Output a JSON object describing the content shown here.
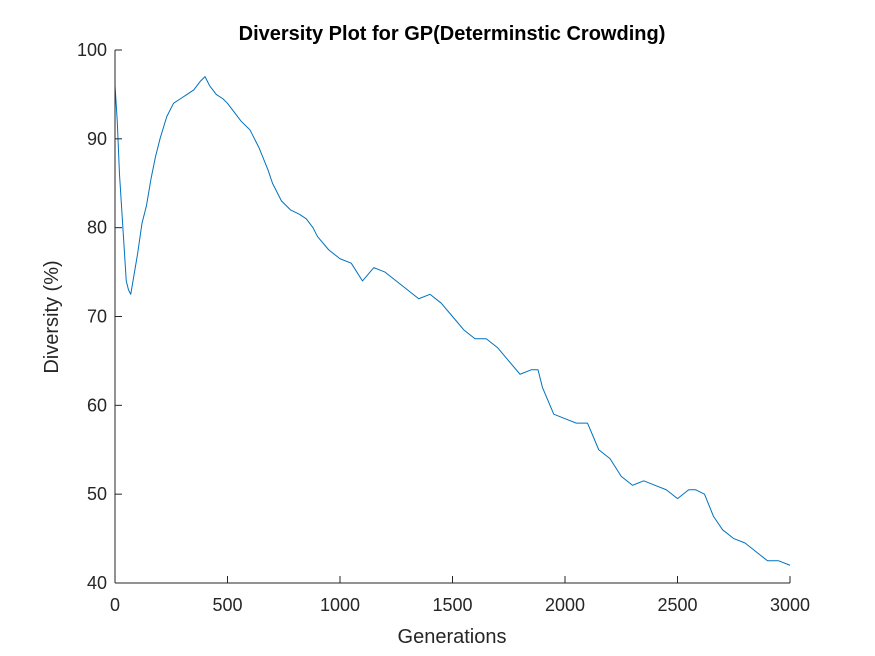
{
  "chart_data": {
    "type": "line",
    "title": "Diversity Plot for GP(Determinstic Crowding)",
    "xlabel": "Generations",
    "ylabel": "Diversity (%)",
    "xlim": [
      0,
      3000
    ],
    "ylim": [
      40,
      100
    ],
    "xticks": [
      "0",
      "500",
      "1000",
      "1500",
      "2000",
      "2500",
      "3000"
    ],
    "yticks": [
      "40",
      "50",
      "60",
      "70",
      "80",
      "90",
      "100"
    ],
    "grid": false,
    "legend": "none",
    "series": [
      {
        "color": "#0072BD",
        "x": [
          0,
          10,
          20,
          30,
          40,
          50,
          60,
          70,
          80,
          90,
          100,
          120,
          140,
          160,
          180,
          200,
          230,
          260,
          290,
          320,
          350,
          380,
          400,
          420,
          450,
          480,
          500,
          530,
          560,
          600,
          640,
          680,
          700,
          740,
          780,
          820,
          850,
          880,
          900,
          950,
          1000,
          1050,
          1100,
          1150,
          1200,
          1250,
          1300,
          1350,
          1400,
          1450,
          1500,
          1550,
          1600,
          1650,
          1700,
          1750,
          1800,
          1850,
          1880,
          1900,
          1950,
          2000,
          2050,
          2100,
          2150,
          2200,
          2250,
          2300,
          2350,
          2400,
          2450,
          2500,
          2550,
          2580,
          2620,
          2660,
          2700,
          2750,
          2800,
          2850,
          2900,
          2950,
          3000
        ],
        "y": [
          96,
          92,
          86,
          82,
          78,
          74,
          73,
          72.5,
          74,
          75.5,
          77,
          80.5,
          82.5,
          85.5,
          88,
          90,
          92.5,
          94,
          94.5,
          95,
          95.5,
          96.5,
          97,
          96,
          95,
          94.5,
          94,
          93,
          92,
          91,
          89,
          86.5,
          85,
          83,
          82,
          81.5,
          81,
          80,
          79,
          77.5,
          76.5,
          76,
          74,
          75.5,
          75,
          74,
          73,
          72,
          72.5,
          71.5,
          70,
          68.5,
          67.5,
          67.5,
          66.5,
          65,
          63.5,
          64,
          64,
          62,
          59,
          58.5,
          58,
          58,
          55,
          54,
          52,
          51,
          51.5,
          51,
          50.5,
          49.5,
          50.5,
          50.5,
          50,
          47.5,
          46,
          45,
          44.5,
          43.5,
          42.5,
          42.5,
          42
        ]
      }
    ]
  }
}
